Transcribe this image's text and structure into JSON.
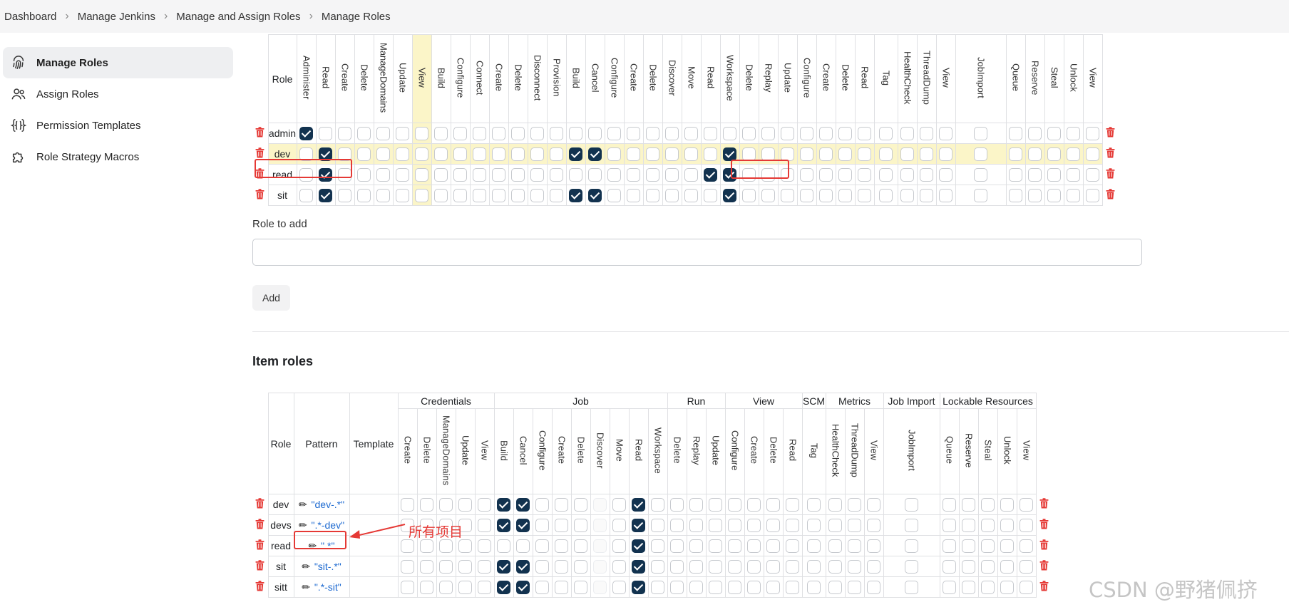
{
  "breadcrumb": [
    "Dashboard",
    "Manage Jenkins",
    "Manage and Assign Roles",
    "Manage Roles"
  ],
  "sidebar": {
    "items": [
      {
        "label": "Manage Roles",
        "icon": "fingerprint-icon",
        "active": true
      },
      {
        "label": "Assign Roles",
        "icon": "users-icon",
        "active": false
      },
      {
        "label": "Permission Templates",
        "icon": "braces-icon",
        "active": false
      },
      {
        "label": "Role Strategy Macros",
        "icon": "puzzle-icon",
        "active": false
      }
    ]
  },
  "global_roles": {
    "role_header": "Role",
    "columns": [
      "Administer",
      "Read",
      "Create",
      "Delete",
      "ManageDomains",
      "Update",
      "View",
      "Build",
      "Configure",
      "Connect",
      "Create",
      "Delete",
      "Disconnect",
      "Provision",
      "Build",
      "Cancel",
      "Configure",
      "Create",
      "Delete",
      "Discover",
      "Move",
      "Read",
      "Workspace",
      "Delete",
      "Replay",
      "Update",
      "Configure",
      "Create",
      "Delete",
      "Read",
      "Tag",
      "HealthCheck",
      "ThreadDump",
      "View",
      "JobImport",
      "Queue",
      "Reserve",
      "Steal",
      "Unlock",
      "View"
    ],
    "rows": [
      {
        "name": "admin",
        "checked": [
          0
        ]
      },
      {
        "name": "dev",
        "checked": [
          1,
          14,
          15,
          22
        ],
        "highlight": true
      },
      {
        "name": "read",
        "checked": [
          1,
          21,
          22
        ]
      },
      {
        "name": "sit",
        "checked": [
          1,
          14,
          15,
          22
        ]
      }
    ]
  },
  "role_to_add": {
    "label": "Role to add",
    "value": "",
    "button": "Add"
  },
  "item_roles": {
    "title": "Item roles",
    "headers": {
      "role": "Role",
      "pattern": "Pattern",
      "template": "Template"
    },
    "groups": [
      {
        "name": "Credentials",
        "span": 5
      },
      {
        "name": "Job",
        "span": 9
      },
      {
        "name": "Run",
        "span": 3
      },
      {
        "name": "View",
        "span": 4
      },
      {
        "name": "SCM",
        "span": 1
      },
      {
        "name": "Metrics",
        "span": 3
      },
      {
        "name": "Job Import",
        "span": 1
      },
      {
        "name": "Lockable Resources",
        "span": 5
      }
    ],
    "columns": [
      "Create",
      "Delete",
      "ManageDomains",
      "Update",
      "View",
      "Build",
      "Cancel",
      "Configure",
      "Create",
      "Delete",
      "Discover",
      "Move",
      "Read",
      "Workspace",
      "Delete",
      "Replay",
      "Update",
      "Configure",
      "Create",
      "Delete",
      "Read",
      "Tag",
      "HealthCheck",
      "ThreadDump",
      "View",
      "JobImport",
      "Queue",
      "Reserve",
      "Steal",
      "Unlock",
      "View"
    ],
    "rows": [
      {
        "name": "dev",
        "pattern": "\"dev-.*\"",
        "checked": [
          5,
          6,
          12
        ]
      },
      {
        "name": "devs",
        "pattern": "\".*-dev\"",
        "checked": [
          5,
          6,
          12
        ]
      },
      {
        "name": "read",
        "pattern": "\".*\"",
        "checked": [
          12
        ]
      },
      {
        "name": "sit",
        "pattern": "\"sit-.*\"",
        "checked": [
          5,
          6,
          12
        ]
      },
      {
        "name": "sitt",
        "pattern": "\".*-sit\"",
        "checked": [
          5,
          6,
          12
        ]
      }
    ],
    "disabled_cols": [
      10
    ]
  },
  "annotation": {
    "text": "所有项目"
  },
  "watermark": "CSDN @野猪佩挤",
  "colors": {
    "checked": "#12324f",
    "highlight_row": "#fbf5c8",
    "annotation_red": "#e53935",
    "delete_red": "#e53935",
    "link_blue": "#1f6bd1"
  }
}
